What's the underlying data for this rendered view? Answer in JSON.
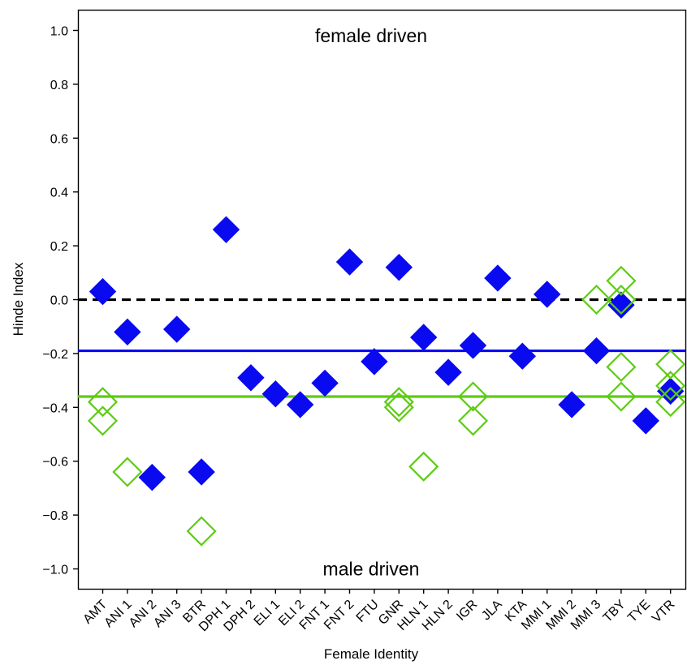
{
  "chart_data": {
    "type": "scatter",
    "xlabel": "Female Identity",
    "ylabel": "Hinde Index",
    "ylim": [
      -1.1,
      1.1
    ],
    "yticks": [
      1.0,
      0.8,
      0.6,
      0.4,
      0.2,
      0.0,
      -0.2,
      -0.4,
      -0.6,
      -0.8,
      -1.0
    ],
    "ytick_labels": [
      "1.0",
      "0.8",
      "0.6",
      "0.4",
      "0.2",
      "0.0",
      "−0.2",
      "−0.4",
      "−0.6",
      "−0.8",
      "−1.0"
    ],
    "categories": [
      "AMT",
      "ANI 1",
      "ANI 2",
      "ANI 3",
      "BTR",
      "DPH 1",
      "DPH 2",
      "ELI 1",
      "ELI 2",
      "FNT 1",
      "FNT 2",
      "FTU",
      "GNR",
      "HLN 1",
      "HLN 2",
      "IGR",
      "JLA",
      "KTA",
      "MMI 1",
      "MMI 2",
      "MMI 3",
      "TBY",
      "TYE",
      "VTR"
    ],
    "annotations": [
      {
        "text": "female driven",
        "y": 0.98
      },
      {
        "text": "male driven",
        "y": -1.0
      }
    ],
    "series": [
      {
        "marker": "filled-diamond",
        "color": "#0a0af0",
        "points": [
          {
            "x": "AMT",
            "y": 0.03
          },
          {
            "x": "ANI 1",
            "y": -0.12
          },
          {
            "x": "ANI 2",
            "y": -0.66
          },
          {
            "x": "ANI 3",
            "y": -0.11
          },
          {
            "x": "BTR",
            "y": -0.64
          },
          {
            "x": "DPH 1",
            "y": 0.26
          },
          {
            "x": "DPH 2",
            "y": -0.29
          },
          {
            "x": "ELI 1",
            "y": -0.35
          },
          {
            "x": "ELI 2",
            "y": -0.39
          },
          {
            "x": "FNT 1",
            "y": -0.31
          },
          {
            "x": "FNT 2",
            "y": 0.14
          },
          {
            "x": "FTU",
            "y": -0.23
          },
          {
            "x": "GNR",
            "y": 0.12
          },
          {
            "x": "HLN 1",
            "y": -0.14
          },
          {
            "x": "HLN 2",
            "y": -0.27
          },
          {
            "x": "IGR",
            "y": -0.17
          },
          {
            "x": "JLA",
            "y": 0.08
          },
          {
            "x": "KTA",
            "y": -0.21
          },
          {
            "x": "MMI 1",
            "y": 0.02
          },
          {
            "x": "MMI 2",
            "y": -0.39
          },
          {
            "x": "MMI 3",
            "y": -0.19
          },
          {
            "x": "TBY",
            "y": -0.02
          },
          {
            "x": "TYE",
            "y": -0.45
          },
          {
            "x": "VTR",
            "y": -0.34
          }
        ]
      },
      {
        "marker": "open-diamond",
        "color": "#5ccc12",
        "points": [
          {
            "x": "AMT",
            "y": -0.38
          },
          {
            "x": "AMT",
            "y": -0.45
          },
          {
            "x": "ANI 1",
            "y": -0.64
          },
          {
            "x": "BTR",
            "y": -0.86
          },
          {
            "x": "GNR",
            "y": -0.38
          },
          {
            "x": "GNR",
            "y": -0.4
          },
          {
            "x": "HLN 1",
            "y": -0.62
          },
          {
            "x": "IGR",
            "y": -0.36
          },
          {
            "x": "IGR",
            "y": -0.45
          },
          {
            "x": "MMI 3",
            "y": 0.0
          },
          {
            "x": "TBY",
            "y": 0.07
          },
          {
            "x": "TBY",
            "y": 0.0
          },
          {
            "x": "TBY",
            "y": -0.25
          },
          {
            "x": "TBY",
            "y": -0.36
          },
          {
            "x": "VTR",
            "y": -0.24
          },
          {
            "x": "VTR",
            "y": -0.32
          },
          {
            "x": "VTR",
            "y": -0.38
          }
        ]
      }
    ],
    "reference_lines": [
      {
        "y": 0.0,
        "style": "dashed",
        "color": "#000000"
      },
      {
        "y": -0.19,
        "style": "solid",
        "color": "#0a0af0"
      },
      {
        "y": -0.36,
        "style": "solid",
        "color": "#5ccc12"
      }
    ],
    "grid": false,
    "legend": "none"
  }
}
